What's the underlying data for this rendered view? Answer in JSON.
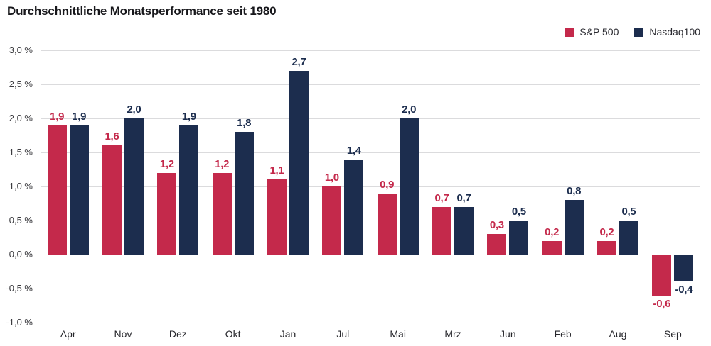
{
  "title": "Durchschnittliche Monatsperformance seit 1980",
  "legend": [
    {
      "label": "S&P 500",
      "color": "#c4294b"
    },
    {
      "label": "Nasdaq100",
      "color": "#1c2d4e"
    }
  ],
  "chart_data": {
    "type": "bar",
    "title": "Durchschnittliche Monatsperformance seit 1980",
    "categories": [
      "Apr",
      "Nov",
      "Dez",
      "Okt",
      "Jan",
      "Jul",
      "Mai",
      "Mrz",
      "Jun",
      "Feb",
      "Aug",
      "Sep"
    ],
    "series": [
      {
        "name": "S&P 500",
        "color": "#c4294b",
        "values": [
          1.9,
          1.6,
          1.2,
          1.2,
          1.1,
          1.0,
          0.9,
          0.7,
          0.3,
          0.2,
          0.2,
          -0.6
        ],
        "labels": [
          "1,9",
          "1,6",
          "1,2",
          "1,2",
          "1,1",
          "1,0",
          "0,9",
          "0,7",
          "0,3",
          "0,2",
          "0,2",
          "-0,6"
        ]
      },
      {
        "name": "Nasdaq100",
        "color": "#1c2d4e",
        "values": [
          1.9,
          2.0,
          1.9,
          1.8,
          2.7,
          1.4,
          2.0,
          0.7,
          0.5,
          0.8,
          0.5,
          -0.4
        ],
        "labels": [
          "1,9",
          "2,0",
          "1,9",
          "1,8",
          "2,7",
          "1,4",
          "2,0",
          "0,7",
          "0,5",
          "0,8",
          "0,5",
          "-0,4"
        ]
      }
    ],
    "xlabel": "",
    "ylabel": "",
    "ylim": [
      -1.0,
      3.0
    ],
    "yticks": [
      {
        "value": 3.0,
        "label": "3,0 %"
      },
      {
        "value": 2.5,
        "label": "2,5 %"
      },
      {
        "value": 2.0,
        "label": "2,0 %"
      },
      {
        "value": 1.5,
        "label": "1,5 %"
      },
      {
        "value": 1.0,
        "label": "1,0 %"
      },
      {
        "value": 0.5,
        "label": "0,5 %"
      },
      {
        "value": 0.0,
        "label": "0,0 %"
      },
      {
        "value": -0.5,
        "label": "-0,5 %"
      },
      {
        "value": -1.0,
        "label": "-1,0 %"
      }
    ],
    "grid": true,
    "legend_position": "top-right",
    "value_labels": true
  }
}
